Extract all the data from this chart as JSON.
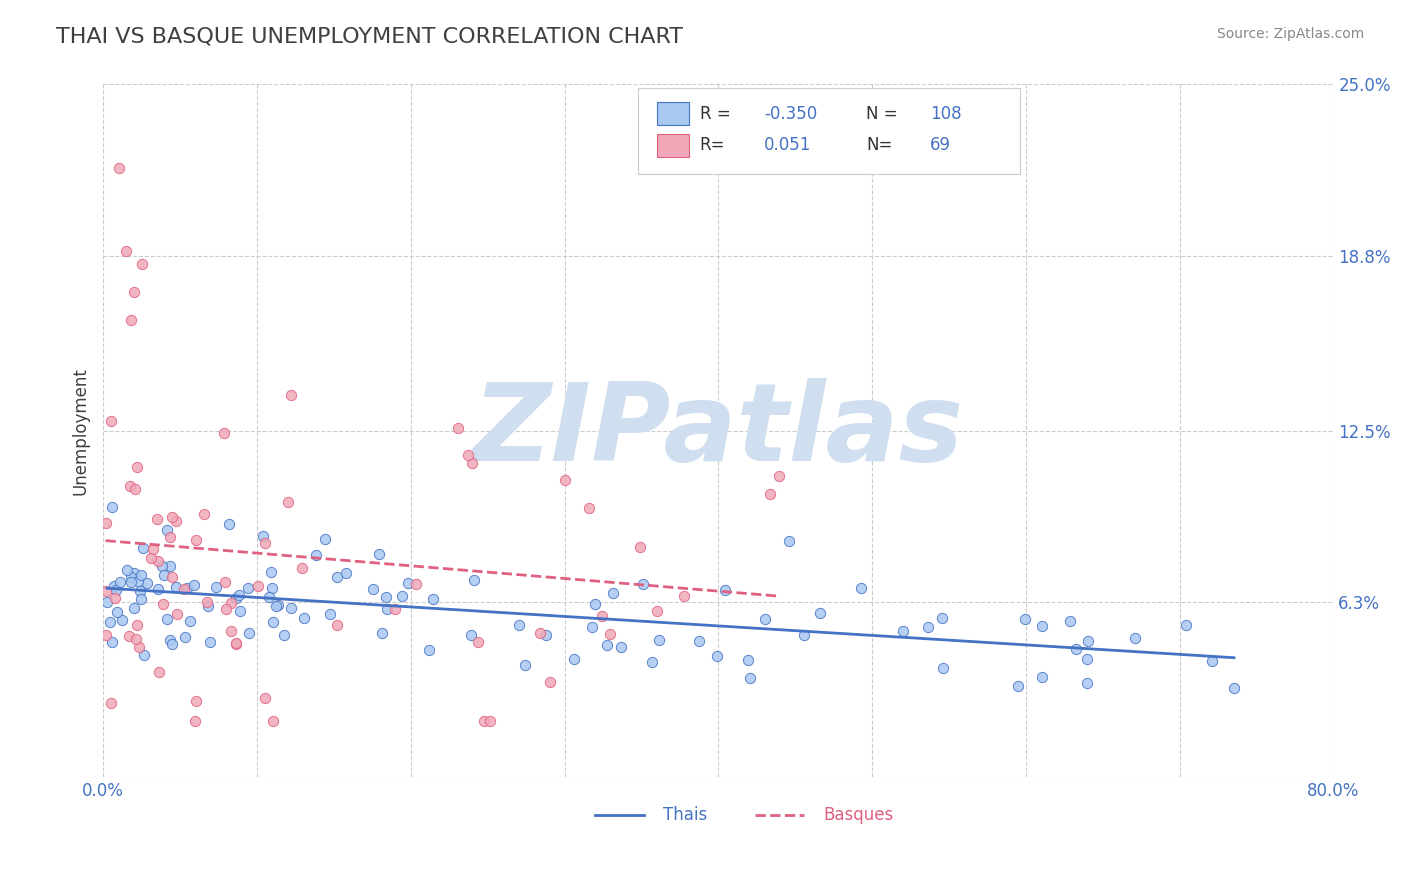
{
  "title": "THAI VS BASQUE UNEMPLOYMENT CORRELATION CHART",
  "source_text": "Source: ZipAtlas.com",
  "ylabel": "Unemployment",
  "xlim": [
    0.0,
    0.8
  ],
  "ylim": [
    0.0,
    0.25
  ],
  "xticks": [
    0.0,
    0.1,
    0.2,
    0.3,
    0.4,
    0.5,
    0.6,
    0.7,
    0.8
  ],
  "xticklabels": [
    "0.0%",
    "",
    "",
    "",
    "",
    "",
    "",
    "",
    "80.0%"
  ],
  "yticks_right": [
    0.0,
    0.063,
    0.125,
    0.188,
    0.25
  ],
  "yticklabels_right": [
    "",
    "6.3%",
    "12.5%",
    "18.8%",
    "25.0%"
  ],
  "grid_color": "#cccccc",
  "background_color": "#ffffff",
  "thai_color": "#a8c8f0",
  "basque_color": "#f0a8b8",
  "thai_line_color": "#4472c4",
  "basque_line_color": "#e06080",
  "thai_R": -0.35,
  "thai_N": 108,
  "basque_R": 0.051,
  "basque_N": 69,
  "watermark": "ZIPatlas",
  "watermark_color": "#d0dff0",
  "legend_R_color": "#4472c4",
  "title_color": "#404040",
  "title_fontsize": 16
}
